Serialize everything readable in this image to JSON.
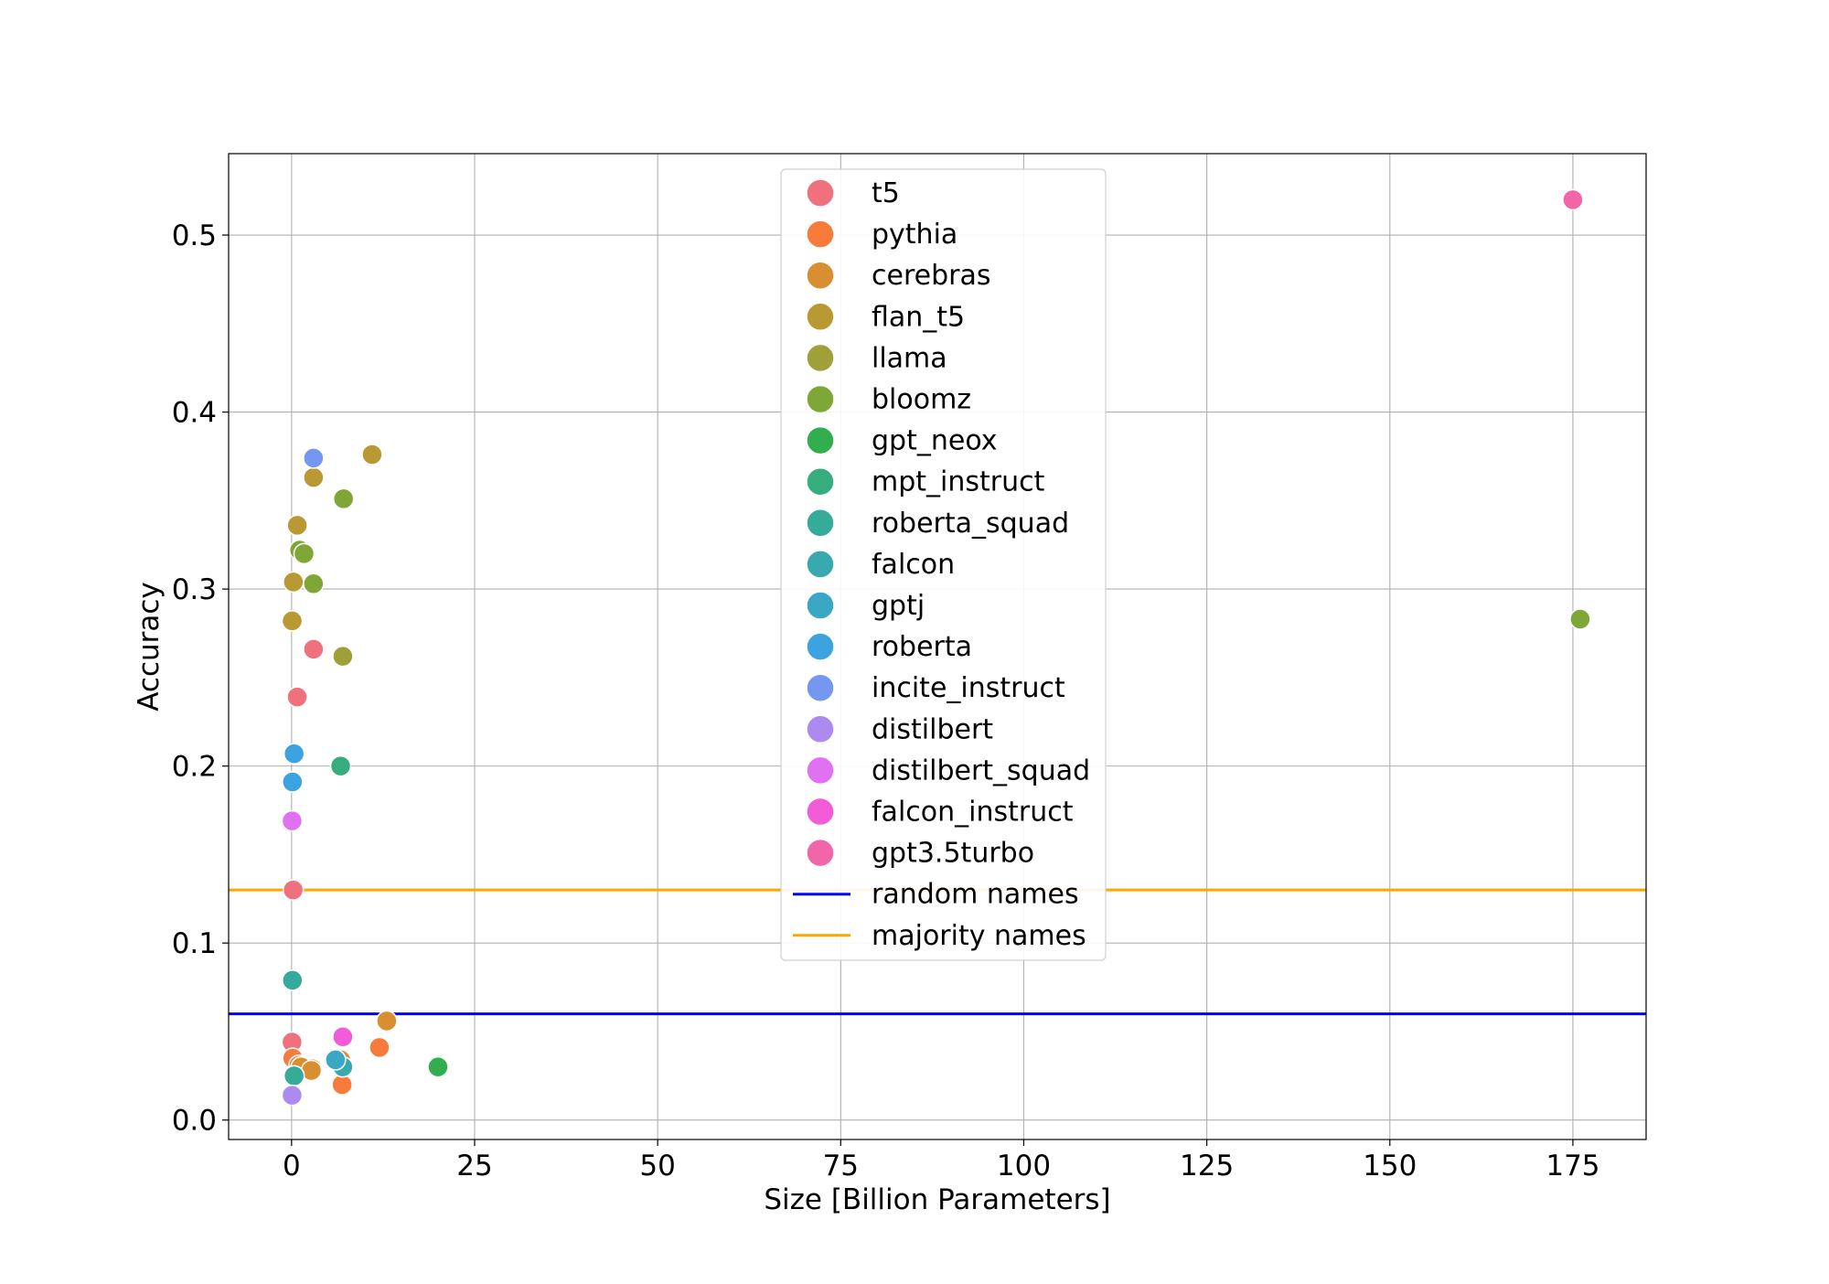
{
  "chart_data": {
    "type": "scatter",
    "title": "",
    "xlabel": "Size [Billion Parameters]",
    "ylabel": "Accuracy",
    "xlim": [
      -8.6,
      185
    ],
    "ylim": [
      -0.011,
      0.546
    ],
    "xticks": [
      0,
      25,
      50,
      75,
      100,
      125,
      150,
      175
    ],
    "yticks": [
      0.0,
      0.1,
      0.2,
      0.3,
      0.4,
      0.5
    ],
    "grid": true,
    "legend_position": "upper-center",
    "series": [
      {
        "name": "t5",
        "color": "#f0717e",
        "points": [
          [
            0.06,
            0.044
          ],
          [
            0.22,
            0.13
          ],
          [
            0.77,
            0.239
          ],
          [
            3.0,
            0.266
          ]
        ]
      },
      {
        "name": "pythia",
        "color": "#f77c3c",
        "points": [
          [
            0.16,
            0.035
          ],
          [
            1.0,
            0.031
          ],
          [
            2.8,
            0.029
          ],
          [
            6.9,
            0.02
          ],
          [
            12.0,
            0.041
          ]
        ]
      },
      {
        "name": "cerebras",
        "color": "#d98e32",
        "points": [
          [
            1.3,
            0.03
          ],
          [
            2.7,
            0.028
          ],
          [
            6.7,
            0.034
          ],
          [
            13.0,
            0.056
          ]
        ]
      },
      {
        "name": "flan_t5",
        "color": "#b99934",
        "points": [
          [
            0.08,
            0.282
          ],
          [
            0.25,
            0.304
          ],
          [
            0.78,
            0.336
          ],
          [
            3.0,
            0.363
          ],
          [
            11.0,
            0.376
          ]
        ]
      },
      {
        "name": "llama",
        "color": "#a0a03a",
        "points": [
          [
            7.0,
            0.262
          ]
        ]
      },
      {
        "name": "bloomz",
        "color": "#7ea737",
        "points": [
          [
            1.1,
            0.322
          ],
          [
            1.7,
            0.32
          ],
          [
            3.0,
            0.303
          ],
          [
            7.1,
            0.351
          ],
          [
            176.0,
            0.283
          ]
        ]
      },
      {
        "name": "gpt_neox",
        "color": "#33ae4f",
        "points": [
          [
            20.0,
            0.03
          ]
        ]
      },
      {
        "name": "mpt_instruct",
        "color": "#35ad7c",
        "points": [
          [
            6.7,
            0.2
          ]
        ]
      },
      {
        "name": "roberta_squad",
        "color": "#36ab9a",
        "points": [
          [
            0.12,
            0.079
          ],
          [
            0.35,
            0.025
          ]
        ]
      },
      {
        "name": "falcon",
        "color": "#38a9ae",
        "points": [
          [
            7.0,
            0.03
          ]
        ]
      },
      {
        "name": "gptj",
        "color": "#3aa7c4",
        "points": [
          [
            6.0,
            0.034
          ]
        ]
      },
      {
        "name": "roberta",
        "color": "#3da3e0",
        "points": [
          [
            0.12,
            0.191
          ],
          [
            0.35,
            0.207
          ]
        ]
      },
      {
        "name": "incite_instruct",
        "color": "#7597f2",
        "points": [
          [
            3.0,
            0.374
          ]
        ]
      },
      {
        "name": "distilbert",
        "color": "#ad8af0",
        "points": [
          [
            0.07,
            0.014
          ]
        ]
      },
      {
        "name": "distilbert_squad",
        "color": "#e071f0",
        "points": [
          [
            0.07,
            0.169
          ]
        ]
      },
      {
        "name": "falcon_instruct",
        "color": "#f35cd9",
        "points": [
          [
            7.0,
            0.047
          ]
        ]
      },
      {
        "name": "gpt3.5turbo",
        "color": "#f066a8",
        "points": [
          [
            175.0,
            0.52
          ]
        ]
      }
    ],
    "hlines": [
      {
        "name": "random names",
        "color": "#0000ff",
        "y": 0.06
      },
      {
        "name": "majority names",
        "color": "#ffa500",
        "y": 0.13
      }
    ]
  }
}
